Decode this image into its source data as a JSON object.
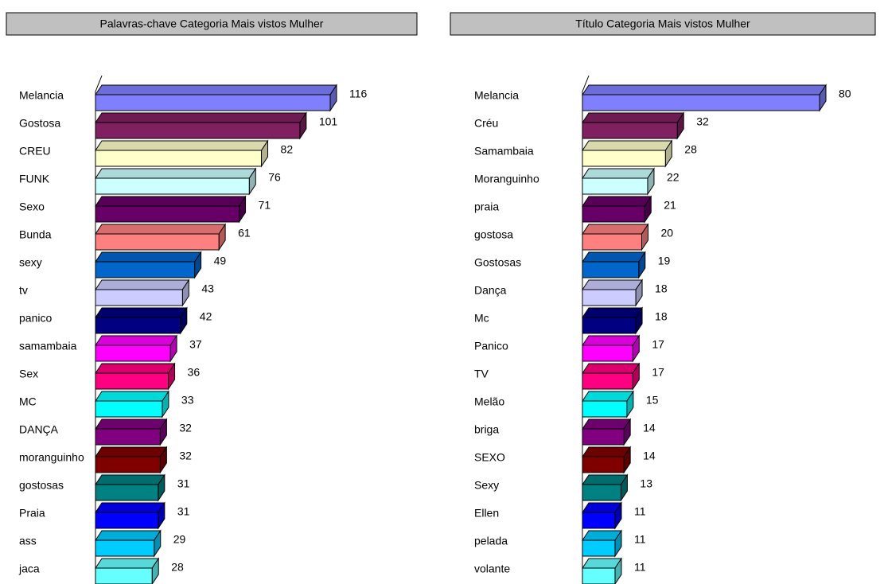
{
  "chart_data": [
    {
      "type": "bar",
      "orientation": "horizontal",
      "title": "Palavras-chave Categoria Mais vistos Mulher",
      "categories": [
        "Melancia",
        "Gostosa",
        "CREU",
        "FUNK",
        "Sexo",
        "Bunda",
        "sexy",
        "tv",
        "panico",
        "samambaia",
        "Sex",
        "MC",
        "DANÇA",
        "moranguinho",
        "gostosas",
        "Praia",
        "ass",
        "jaca"
      ],
      "values": [
        116,
        101,
        82,
        76,
        71,
        61,
        49,
        43,
        42,
        37,
        36,
        33,
        32,
        32,
        31,
        31,
        29,
        28
      ],
      "colors": [
        "#8080ff",
        "#802060",
        "#ffffcc",
        "#ccffff",
        "#660066",
        "#ff8080",
        "#0066cc",
        "#ccccff",
        "#000080",
        "#ff00ff",
        "#ff0080",
        "#00ffff",
        "#800080",
        "#800000",
        "#008080",
        "#0000ff",
        "#00ccff",
        "#66ffff"
      ]
    },
    {
      "type": "bar",
      "orientation": "horizontal",
      "title": "Título Categoria Mais vistos Mulher",
      "categories": [
        "Melancia",
        "Créu",
        "Samambaia",
        "Moranguinho",
        "praia",
        "gostosa",
        "Gostosas",
        "Dança",
        "Mc",
        "Panico",
        "TV",
        "Melão",
        "briga",
        "SEXO",
        "Sexy",
        "Ellen",
        "pelada",
        "volante"
      ],
      "values": [
        80,
        32,
        28,
        22,
        21,
        20,
        19,
        18,
        18,
        17,
        17,
        15,
        14,
        14,
        13,
        11,
        11,
        11
      ],
      "colors": [
        "#8080ff",
        "#802060",
        "#ffffcc",
        "#ccffff",
        "#660066",
        "#ff8080",
        "#0066cc",
        "#ccccff",
        "#000080",
        "#ff00ff",
        "#ff0080",
        "#00ffff",
        "#800080",
        "#800000",
        "#008080",
        "#0000ff",
        "#00ccff",
        "#66ffff"
      ]
    }
  ]
}
